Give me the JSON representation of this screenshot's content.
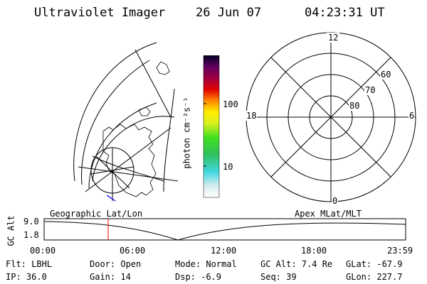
{
  "header": {
    "title": "Ultraviolet Imager",
    "date": "26 Jun 07",
    "time": "04:23:31 UT"
  },
  "colorbar": {
    "label": "photon cm⁻²s⁻¹",
    "tick_high": "100",
    "tick_low": "10"
  },
  "polar_plot": {
    "mlt_top": "12",
    "mlt_left": "18",
    "mlt_right": "6",
    "mlt_bottom": "0",
    "lat_60": "60",
    "lat_70": "70",
    "lat_80": "80"
  },
  "timeline": {
    "left_title": "Geographic Lat/Lon",
    "right_title": "Apex MLat/MLT",
    "y_axis_label": "GC Alt",
    "y_tick_top": "9.0",
    "y_tick_bottom": "1.8",
    "x_ticks": [
      "00:00",
      "06:00",
      "12:00",
      "18:00",
      "23:59"
    ],
    "current_marker_color": "#ff0000"
  },
  "status": {
    "row1": [
      {
        "key": "flt",
        "text": "Flt: LBHL"
      },
      {
        "key": "door",
        "text": "Door: Open"
      },
      {
        "key": "mode",
        "text": "Mode: Normal"
      },
      {
        "key": "gcalt",
        "text": "GC Alt: 7.4 Re"
      },
      {
        "key": "glat",
        "text": "GLat: -67.9"
      }
    ],
    "row2": [
      {
        "key": "ip",
        "text": "IP: 36.0"
      },
      {
        "key": "gain",
        "text": "Gain: 14"
      },
      {
        "key": "dsp",
        "text": "Dsp:   -6.9"
      },
      {
        "key": "seq",
        "text": "Seq: 39"
      },
      {
        "key": "glon",
        "text": "GLon: 227.7"
      }
    ]
  }
}
